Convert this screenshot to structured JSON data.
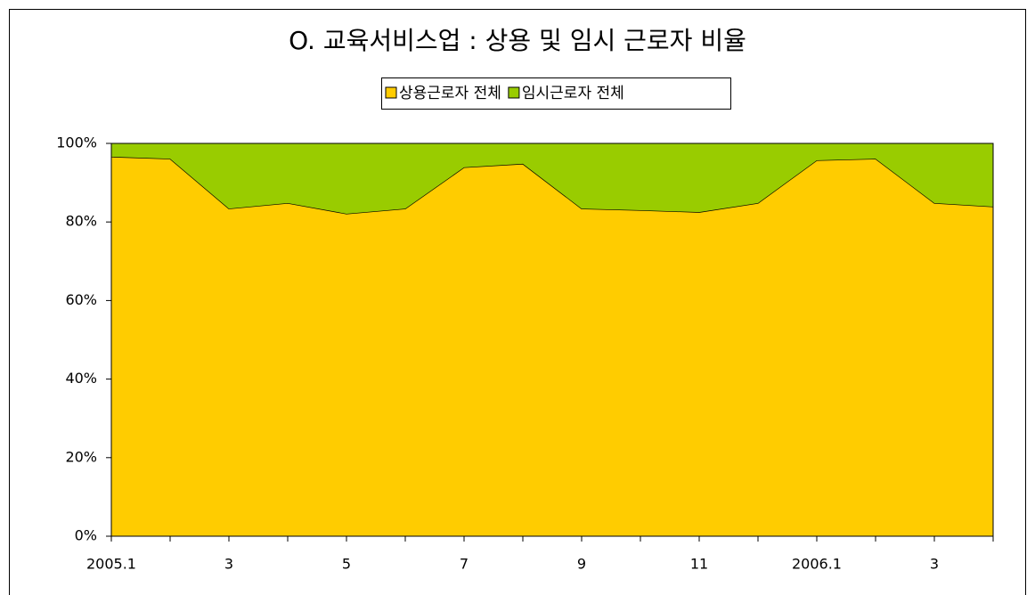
{
  "chart_data": {
    "type": "stacked_area",
    "title": "O. 교육서비스업 : 상용 및 임시 근로자 비율",
    "categories": [
      "2005.1",
      null,
      "3",
      null,
      "5",
      null,
      "7",
      null,
      "9",
      null,
      "11",
      null,
      "2006.1",
      null,
      "3",
      null
    ],
    "series": [
      {
        "name": "상용근로자 전체",
        "color": "#ffcc00",
        "values": [
          96.6,
          96.1,
          83.4,
          84.8,
          82.1,
          83.4,
          93.9,
          94.8,
          83.4,
          83.0,
          82.5,
          84.8,
          95.7,
          96.1,
          84.8,
          83.9
        ]
      },
      {
        "name": "임시근로자 전체",
        "color": "#99cc00",
        "values": [
          3.4,
          3.9,
          16.6,
          15.2,
          17.9,
          16.6,
          6.1,
          5.2,
          16.6,
          17.0,
          17.5,
          15.2,
          4.3,
          3.9,
          15.2,
          16.1
        ]
      }
    ],
    "ylim": [
      0,
      100
    ],
    "yticks": [
      {
        "value": 0,
        "label": "0%"
      },
      {
        "value": 20,
        "label": "20%"
      },
      {
        "value": 40,
        "label": "40%"
      },
      {
        "value": 60,
        "label": "60%"
      },
      {
        "value": 80,
        "label": "80%"
      },
      {
        "value": 100,
        "label": "100%"
      }
    ],
    "legend": "top"
  }
}
